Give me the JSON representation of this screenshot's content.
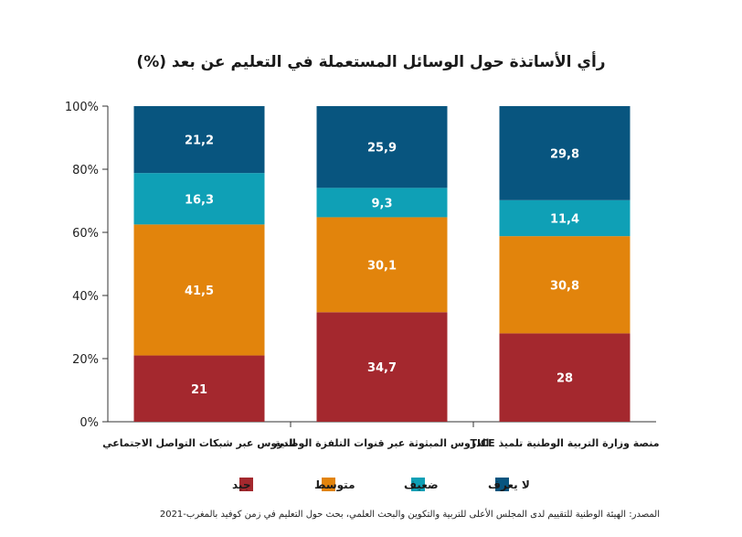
{
  "chart_data": {
    "type": "bar",
    "stacked": true,
    "title": "رأي الأساتذة حول الوسائل المستعملة في التعليم عن بعد (%)",
    "categories": [
      "الدروس عبر شبكات التواصل الاجتماعي",
      "الدروس المبثوثة عبر قنوات التلفزة الوطنية",
      "منصة وزارة التربية الوطنية تلميذ TICE"
    ],
    "series": [
      {
        "name": "جيد",
        "color": "#a4282e",
        "values": [
          21,
          34.7,
          28
        ],
        "labels": [
          "21",
          "34,7",
          "28"
        ]
      },
      {
        "name": "متوسط",
        "color": "#e2840c",
        "values": [
          41.5,
          30.1,
          30.8
        ],
        "labels": [
          "41,5",
          "30,1",
          "30,8"
        ]
      },
      {
        "name": "ضعيف",
        "color": "#0fa0b6",
        "values": [
          16.3,
          9.3,
          11.4
        ],
        "labels": [
          "16,3",
          "9,3",
          "11,4"
        ]
      },
      {
        "name": "لا يعرف",
        "color": "#08557f",
        "values": [
          21.2,
          25.9,
          29.8
        ],
        "labels": [
          "21,2",
          "25,9",
          "29,8"
        ]
      }
    ],
    "ylim": [
      0,
      100
    ],
    "yticks": [
      0,
      20,
      40,
      60,
      80,
      100
    ],
    "ytick_labels": [
      "0%",
      "20%",
      "40%",
      "60%",
      "80%",
      "100%"
    ],
    "grid": false,
    "legend_position": "bottom"
  },
  "source": "المصدر: الهيئة الوطنية للتقييم لدى المجلس الأعلى للتربية والتكوين والبحث العلمي، بحث حول التعليم في زمن كوفيد بالمغرب-2021"
}
